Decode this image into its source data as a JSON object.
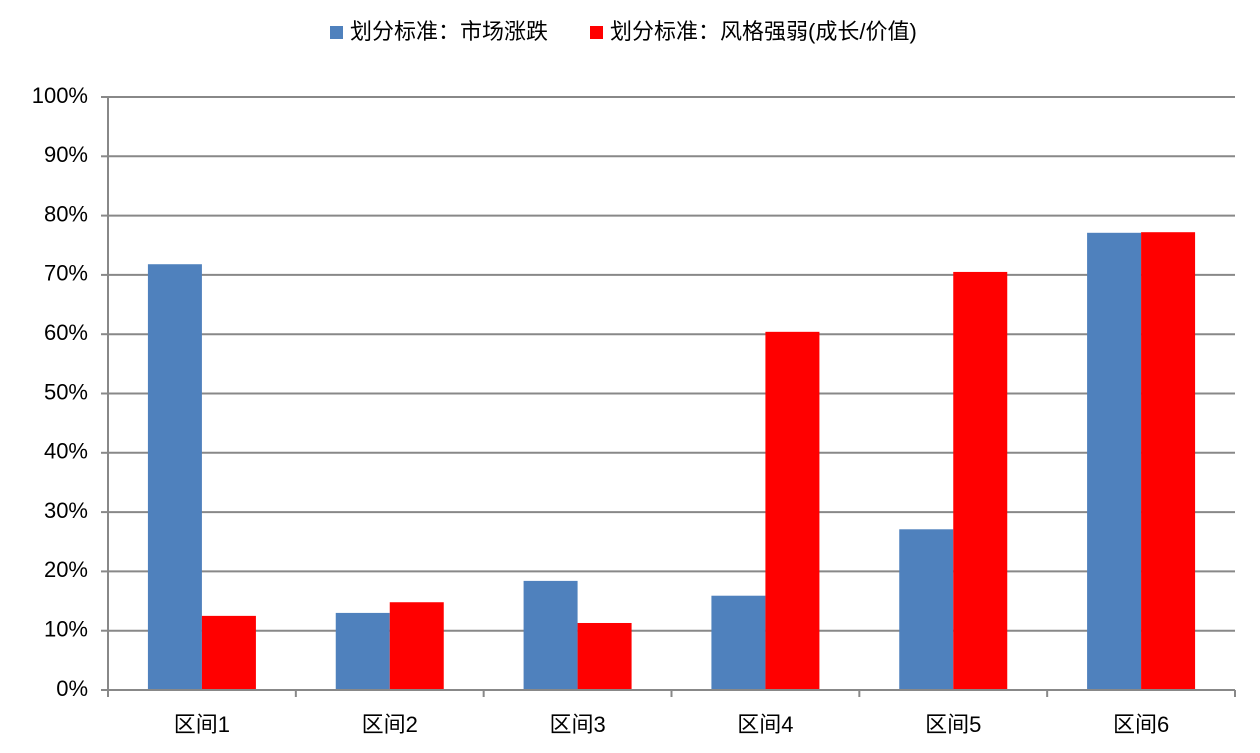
{
  "chart_data": {
    "type": "bar",
    "categories": [
      "区间1",
      "区间2",
      "区间3",
      "区间4",
      "区间5",
      "区间6"
    ],
    "series": [
      {
        "name": "划分标准：市场涨跌",
        "color": "#4f81bd",
        "values": [
          71.8,
          13.0,
          18.4,
          15.9,
          27.1,
          77.1
        ]
      },
      {
        "name": "划分标准：风格强弱(成长/价值)",
        "color": "#ff0000",
        "values": [
          12.5,
          14.8,
          11.3,
          60.4,
          70.5,
          77.2
        ]
      }
    ],
    "ylim": [
      0,
      100
    ],
    "yticks": [
      {
        "value": 0,
        "label": "0%"
      },
      {
        "value": 10,
        "label": "10%"
      },
      {
        "value": 20,
        "label": "20%"
      },
      {
        "value": 30,
        "label": "30%"
      },
      {
        "value": 40,
        "label": "40%"
      },
      {
        "value": 50,
        "label": "50%"
      },
      {
        "value": 60,
        "label": "60%"
      },
      {
        "value": 70,
        "label": "70%"
      },
      {
        "value": 80,
        "label": "80%"
      },
      {
        "value": 90,
        "label": "90%"
      },
      {
        "value": 100,
        "label": "100%"
      }
    ],
    "grid": true,
    "legend": "top"
  }
}
